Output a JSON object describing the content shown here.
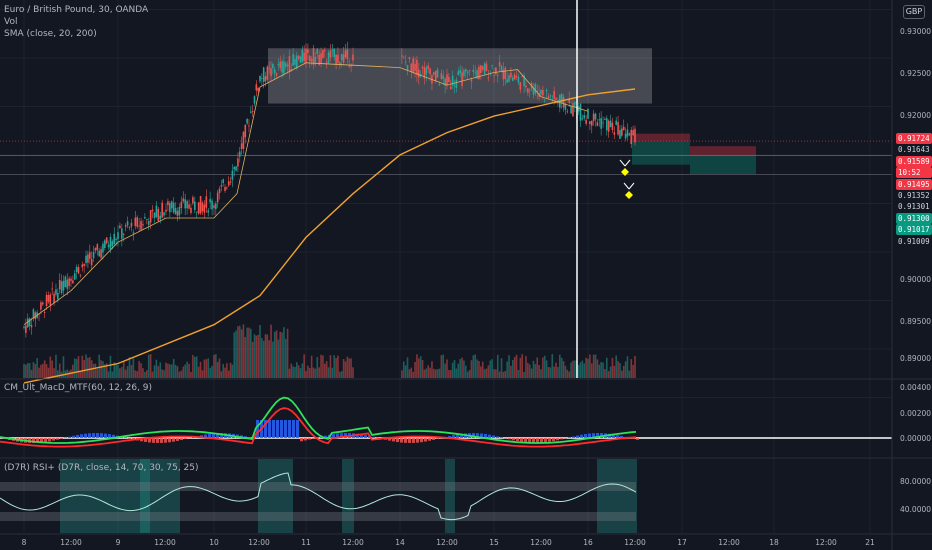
{
  "header": {
    "symbol_legend": "Euro / British Pound, 30, OANDA",
    "vol_legend": "Vol",
    "sma_legend": "SMA (close, 20, 200)",
    "currency": "GBP"
  },
  "macd_legend": "CM_Ult_MacD_MTF(60, 12, 26, 9)",
  "rsi_legend": "(D7R) RSI+ (D7R, close, 14, 70, 30, 75, 25)",
  "price_labels": [
    {
      "text": "0.91724",
      "color": "#f23645"
    },
    {
      "text": "0.91643",
      "color": "#131722"
    },
    {
      "text": "0.91589",
      "color": "#f23645"
    },
    {
      "text": "10:52",
      "color": "#f23645"
    },
    {
      "text": "0.91495",
      "color": "#f23645"
    },
    {
      "text": "0.91352",
      "color": "#131722"
    },
    {
      "text": "0.91301",
      "color": "#131722"
    },
    {
      "text": "0.91300",
      "color": "#089981"
    },
    {
      "text": "0.91017",
      "color": "#089981"
    },
    {
      "text": "0.91009",
      "color": "#131722"
    }
  ],
  "colors": {
    "bull": "#26a69a",
    "bear": "#ef5350",
    "sma200": "#f0a030",
    "sma20": "#e0b060",
    "macd_green": "#2ee25a",
    "macd_red": "#ff2a2a",
    "hist_blue": "#2962ff",
    "marker_yellow": "#ffff00"
  },
  "chart_data": {
    "type": "line",
    "price_axis": {
      "ticks": [
        "0.93000",
        "0.92500",
        "0.92000",
        "0.90000",
        "0.89500",
        "0.89000"
      ],
      "ylim": [
        0.8885,
        0.9315
      ]
    },
    "x_tick_labels": [
      "8",
      "12:00",
      "9",
      "12:00",
      "10",
      "12:00",
      "11",
      "12:00",
      "14",
      "12:00",
      "15",
      "12:00",
      "16",
      "12:00",
      "17",
      "12:00",
      "18",
      "12:00",
      "21"
    ],
    "series": [
      {
        "name": "SMA (close, 20, 200)",
        "x": [
          8.0,
          9.0,
          10.0,
          10.5,
          11.0,
          11.5,
          14.0,
          14.5,
          15.0,
          15.5,
          16.0,
          16.5
        ],
        "values": [
          0.8915,
          0.8935,
          0.8975,
          0.9005,
          0.9065,
          0.911,
          0.915,
          0.9173,
          0.919,
          0.9201,
          0.9212,
          0.9218
        ]
      },
      {
        "x": [
          8.0,
          8.5,
          9.0,
          9.5,
          10.0,
          10.25,
          10.5,
          11.0,
          14.0,
          14.5,
          15.0,
          15.25,
          15.5,
          16.0
        ],
        "values": [
          0.8975,
          0.901,
          0.906,
          0.9085,
          0.9085,
          0.911,
          0.922,
          0.9245,
          0.924,
          0.9222,
          0.9235,
          0.9238,
          0.921,
          0.9195
        ]
      },
      {
        "x": [
          8.0,
          8.5,
          9.0,
          9.5,
          10.0,
          10.25,
          10.5,
          11.0,
          11.5,
          14.0,
          14.5,
          15.0,
          15.5,
          16.0,
          16.5
        ],
        "values": [
          0.8972,
          0.9025,
          0.9068,
          0.9095,
          0.91,
          0.914,
          0.923,
          0.9252,
          0.925,
          0.9248,
          0.9225,
          0.924,
          0.9215,
          0.919,
          0.9168
        ]
      }
    ],
    "macd_axis": {
      "ticks": [
        "0.00400",
        "0.00200",
        "0.00000"
      ]
    },
    "rsi_axis": {
      "ticks": [
        "80.0000",
        "40.0000"
      ]
    }
  }
}
